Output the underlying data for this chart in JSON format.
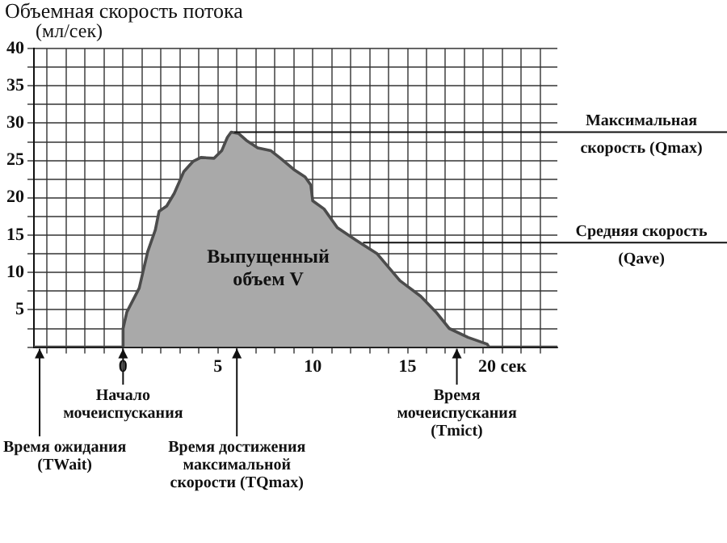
{
  "chart_data": {
    "type": "area",
    "title": "Объемная скорость потока",
    "ylabel": "(мл/сек)",
    "x": [
      -4.7,
      0,
      0,
      0.2,
      0.85,
      1.3,
      1.7,
      1.9,
      2.3,
      2.7,
      3.2,
      3.7,
      4.1,
      4.8,
      5.2,
      5.5,
      5.7,
      6.1,
      6.5,
      7.1,
      7.8,
      8.3,
      9.0,
      9.6,
      9.9,
      10.0,
      10.6,
      11.3,
      12.3,
      13.4,
      14.6,
      15.7,
      16.5,
      17.2,
      18.2,
      19.2,
      19.3,
      22.9
    ],
    "series": [
      {
        "color": "#a9a9a9",
        "values": [
          0,
          0,
          2.5,
          4.7,
          7.9,
          12.8,
          15.7,
          18.2,
          18.9,
          20.6,
          23.5,
          24.9,
          25.4,
          25.3,
          26.3,
          28.1,
          28.8,
          28.6,
          27.7,
          26.7,
          26.3,
          25.3,
          23.8,
          22.8,
          21.7,
          19.6,
          18.5,
          16.0,
          14.3,
          12.5,
          8.9,
          6.8,
          4.7,
          2.5,
          1.3,
          0.4,
          0,
          0
        ]
      }
    ],
    "xlim": [
      -4.7,
      22.9
    ],
    "ylim": [
      0,
      40
    ],
    "xticks": [
      {
        "value": -4,
        "label": null
      },
      {
        "value": -3,
        "label": null
      },
      {
        "value": -2,
        "label": null
      },
      {
        "value": -1,
        "label": null
      },
      0,
      {
        "value": 1,
        "label": null
      },
      {
        "value": 2,
        "label": null
      },
      {
        "value": 3,
        "label": null
      },
      {
        "value": 4,
        "label": null
      },
      5,
      {
        "value": 6,
        "label": null
      },
      {
        "value": 7,
        "label": null
      },
      {
        "value": 8,
        "label": null
      },
      {
        "value": 9,
        "label": null
      },
      10,
      {
        "value": 11,
        "label": null
      },
      {
        "value": 12,
        "label": null
      },
      {
        "value": 13,
        "label": null
      },
      {
        "value": 14,
        "label": null
      },
      15,
      {
        "value": 16,
        "label": null
      },
      {
        "value": 17,
        "label": null
      },
      {
        "value": 18,
        "label": null
      },
      {
        "value": 19,
        "label": null
      },
      {
        "value": 20,
        "label": "20 сек"
      },
      {
        "value": 21,
        "label": null
      },
      {
        "value": 22,
        "label": null
      }
    ],
    "yticks": [
      {
        "value": 0,
        "label": null
      },
      {
        "value": 2.5,
        "label": null
      },
      5,
      {
        "value": 7.5,
        "label": null
      },
      10,
      {
        "value": 12.5,
        "label": null
      },
      15,
      {
        "value": 17.5,
        "label": null
      },
      20,
      {
        "value": 22.5,
        "label": null
      },
      25,
      {
        "value": 27.5,
        "label": null
      },
      30,
      {
        "value": 32.5,
        "label": null
      },
      35,
      {
        "value": 37.5,
        "label": null
      },
      40
    ],
    "grid": true,
    "legend": false,
    "marker": "none",
    "ref_lines": [
      {
        "axis": "y",
        "value": 28.8,
        "label": "Максимальная скорость (Qmax)"
      },
      {
        "axis": "y",
        "value": 14,
        "label": "Средняя скорость (Qave)"
      }
    ],
    "annotations": [
      "Выпущенный объем V",
      {
        "text": "Время ожидания (TWait)",
        "x": -4.4,
        "y": 0
      },
      {
        "text": "Начало мочеиспускания",
        "x": 0,
        "y": 0
      },
      {
        "text": "Время достижения максимальной скорости (TQmax)",
        "x": 6,
        "y": 0
      },
      {
        "text": "Время мочеиспускания (Tmict)",
        "x": 17.6,
        "y": 0
      }
    ]
  }
}
